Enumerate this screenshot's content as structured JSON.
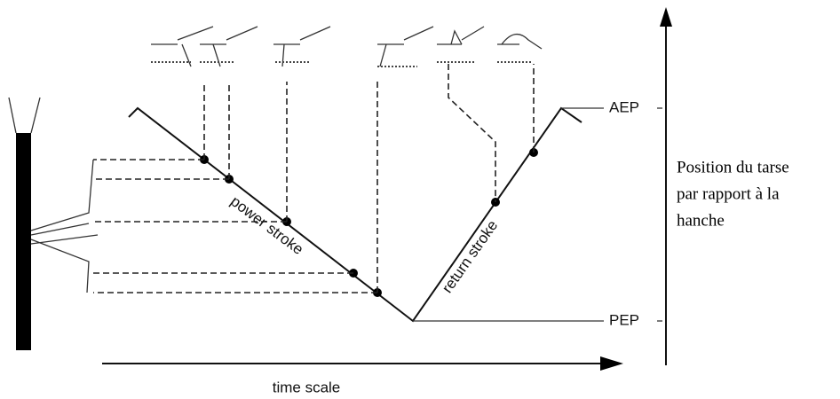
{
  "labels": {
    "aep": "AEP",
    "pep": "PEP",
    "power_stroke": "power stroke",
    "return_stroke": "return stroke",
    "time_scale": "time scale"
  },
  "caption": [
    "Position du tarse",
    "par rapport à la",
    "hanche"
  ]
}
